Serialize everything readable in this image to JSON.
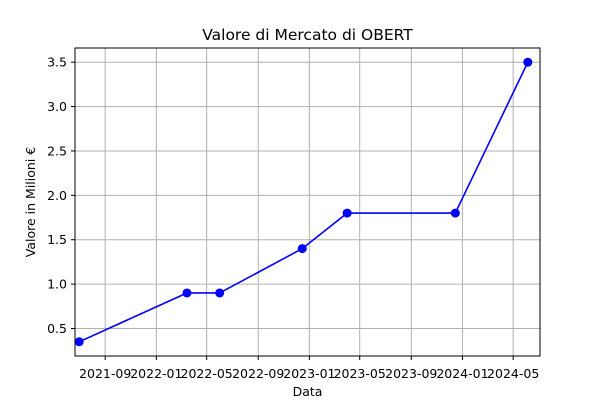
{
  "chart_data": {
    "type": "line",
    "title": "Valore di Mercato di OBERT",
    "xlabel": "Data",
    "ylabel": "Valore in Milioni €",
    "x_tick_labels": [
      "2021-09",
      "2022-01",
      "2022-05",
      "2022-09",
      "2023-01",
      "2023-05",
      "2023-09",
      "2024-01",
      "2024-05"
    ],
    "x_ticks": [
      "2021-09-01",
      "2022-01-01",
      "2022-05-01",
      "2022-09-01",
      "2023-01-01",
      "2023-05-01",
      "2023-09-01",
      "2024-01-01",
      "2024-05-01"
    ],
    "y_ticks": [
      0.5,
      1.0,
      1.5,
      2.0,
      2.5,
      3.0,
      3.5
    ],
    "y_tick_labels": [
      "0.5",
      "1.0",
      "1.5",
      "2.0",
      "2.5",
      "3.0",
      "3.5"
    ],
    "xlim": [
      "2021-06-21",
      "2024-07-04"
    ],
    "ylim": [
      0.19,
      3.66
    ],
    "grid": true,
    "series": [
      {
        "color": "#0000ff",
        "marker": "circle",
        "x": [
          "2021-07-01",
          "2022-03-15",
          "2022-06-01",
          "2022-12-15",
          "2023-04-01",
          "2023-12-15",
          "2024-06-05"
        ],
        "y": [
          0.35,
          0.9,
          0.9,
          1.4,
          1.8,
          1.8,
          3.5
        ]
      }
    ]
  }
}
